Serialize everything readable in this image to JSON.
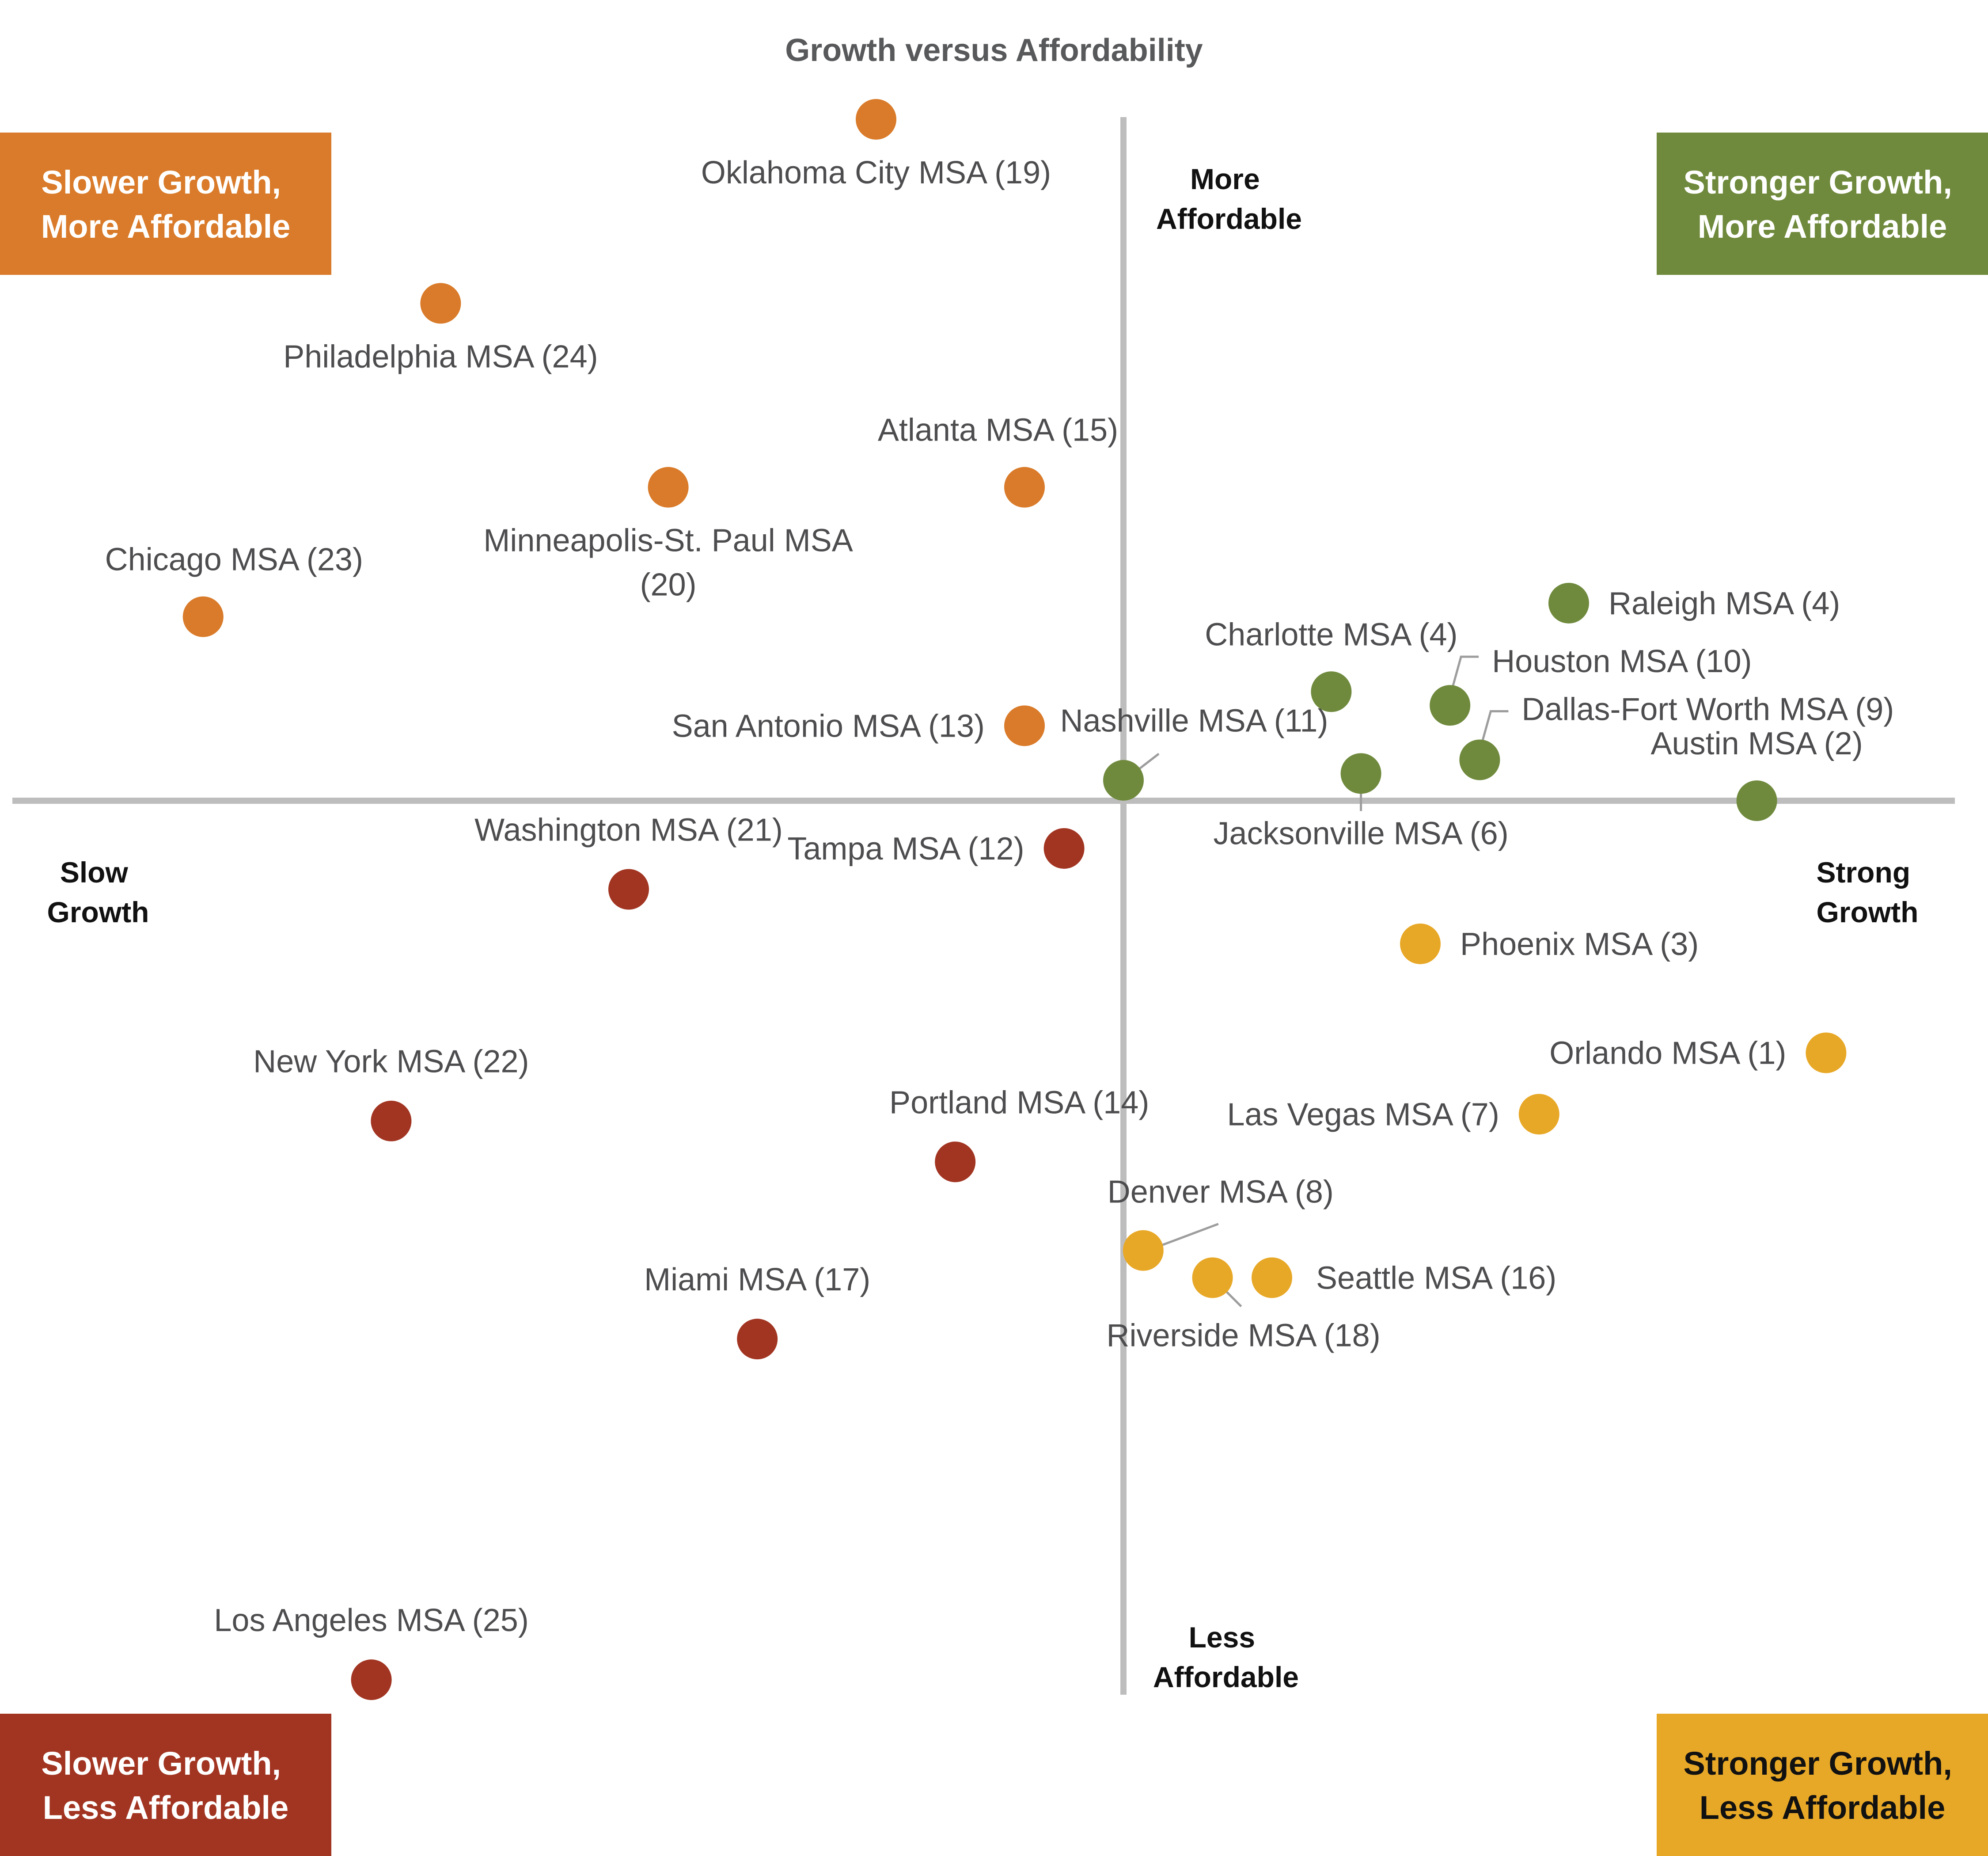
{
  "chart_data": {
    "type": "scatter",
    "title": "Growth versus Affordability",
    "x_axis": {
      "low": "Slow Growth",
      "high": "Strong Growth"
    },
    "y_axis": {
      "high": "More Affordable",
      "low": "Less Affordable"
    },
    "grid": false,
    "quadrants": [
      {
        "key": "top_left",
        "label": "Slower Growth, More Affordable",
        "color": "#d97b2a",
        "text_color": "#ffffff"
      },
      {
        "key": "top_right",
        "label": "Stronger Growth, More Affordable",
        "color": "#6f8a3d",
        "text_color": "#ffffff"
      },
      {
        "key": "bottom_left",
        "label": "Slower Growth, Less Affordable",
        "color": "#a23522",
        "text_color": "#ffffff"
      },
      {
        "key": "bottom_right",
        "label": "Stronger Growth, Less Affordable",
        "color": "#e8a827",
        "text_color": "#111111"
      }
    ],
    "points": [
      {
        "label": "Oklahoma City MSA (19)",
        "quadrant": "top_left",
        "x": -0.25,
        "y": 1.0
      },
      {
        "label": "Philadelphia MSA (24)",
        "quadrant": "top_left",
        "x": -0.69,
        "y": 0.73
      },
      {
        "label": "Atlanta MSA (15)",
        "quadrant": "top_left",
        "x": -0.1,
        "y": 0.46
      },
      {
        "label": "Minneapolis-St. Paul MSA (20)",
        "quadrant": "top_left",
        "x": -0.46,
        "y": 0.46
      },
      {
        "label": "Chicago MSA (23)",
        "quadrant": "top_left",
        "x": -0.93,
        "y": 0.27
      },
      {
        "label": "San Antonio MSA (13)",
        "quadrant": "top_left",
        "x": -0.1,
        "y": 0.11
      },
      {
        "label": "Nashville MSA (11)",
        "quadrant": "top_right",
        "x": 0.0,
        "y": 0.03
      },
      {
        "label": "Charlotte MSA (4)",
        "quadrant": "top_right",
        "x": 0.21,
        "y": 0.16
      },
      {
        "label": "Raleigh MSA (4)",
        "quadrant": "top_right",
        "x": 0.45,
        "y": 0.29
      },
      {
        "label": "Houston MSA (10)",
        "quadrant": "top_right",
        "x": 0.33,
        "y": 0.14
      },
      {
        "label": "Dallas-Fort Worth MSA (9)",
        "quadrant": "top_right",
        "x": 0.36,
        "y": 0.06
      },
      {
        "label": "Jacksonville MSA (6)",
        "quadrant": "top_right",
        "x": 0.24,
        "y": 0.04
      },
      {
        "label": "Austin MSA (2)",
        "quadrant": "top_right",
        "x": 0.64,
        "y": 0.0
      },
      {
        "label": "Washington MSA (21)",
        "quadrant": "bottom_left",
        "x": -0.5,
        "y": -0.13
      },
      {
        "label": "Tampa MSA (12)",
        "quadrant": "bottom_left",
        "x": -0.06,
        "y": -0.07
      },
      {
        "label": "New York MSA (22)",
        "quadrant": "bottom_left",
        "x": -0.74,
        "y": -0.47
      },
      {
        "label": "Portland MSA (14)",
        "quadrant": "bottom_left",
        "x": -0.17,
        "y": -0.53
      },
      {
        "label": "Miami MSA (17)",
        "quadrant": "bottom_left",
        "x": -0.37,
        "y": -0.79
      },
      {
        "label": "Los Angeles MSA (25)",
        "quadrant": "bottom_left",
        "x": -0.76,
        "y": -1.29
      },
      {
        "label": "Phoenix MSA (3)",
        "quadrant": "bottom_right",
        "x": 0.3,
        "y": -0.21
      },
      {
        "label": "Orlando MSA (1)",
        "quadrant": "bottom_right",
        "x": 0.71,
        "y": -0.37
      },
      {
        "label": "Las Vegas MSA (7)",
        "quadrant": "bottom_right",
        "x": 0.42,
        "y": -0.46
      },
      {
        "label": "Denver MSA (8)",
        "quadrant": "bottom_right",
        "x": 0.02,
        "y": -0.66
      },
      {
        "label": "Riverside MSA (18)",
        "quadrant": "bottom_right",
        "x": 0.09,
        "y": -0.7
      },
      {
        "label": "Seattle MSA (16)",
        "quadrant": "bottom_right",
        "x": 0.15,
        "y": -0.7
      }
    ]
  }
}
